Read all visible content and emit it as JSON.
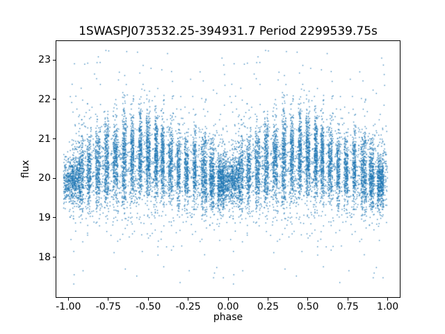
{
  "chart_data": {
    "type": "scatter",
    "title": "1SWASPJ073532.25-394931.7 Period 2299539.75s",
    "xlabel": "phase",
    "ylabel": "flux",
    "xlim": [
      -1.08,
      1.08
    ],
    "ylim": [
      16.97,
      23.5
    ],
    "x_ticks": {
      "values": [
        -1.0,
        -0.75,
        -0.5,
        -0.25,
        0.0,
        0.25,
        0.5,
        0.75,
        1.0
      ],
      "labels": [
        "-1.00",
        "-0.75",
        "-0.50",
        "-0.25",
        "0.00",
        "0.25",
        "0.50",
        "0.75",
        "1.00"
      ]
    },
    "y_ticks": {
      "values": [
        18,
        19,
        20,
        21,
        22,
        23
      ],
      "labels": [
        "18",
        "19",
        "20",
        "21",
        "22",
        "23"
      ]
    },
    "grid": false,
    "legend": null,
    "colors": {
      "marker": "#1f77b4",
      "spine": "#000000",
      "background": "#ffffff",
      "text": "#000000"
    },
    "marker": {
      "radius": 0.7,
      "alpha": 0.9
    },
    "description": "Phase-folded SuperWASP light curve; ~14000 tiny blue points. Flux mostly 19-21.5 centered near 20.1, dense vertical night-clusters, sparse outliers from 17.3 up to 23.2. Data in phase [0,1] duplicated at phase-1 so pattern repeats over [-1,0] and [0,1].",
    "point_generation": {
      "seed": 7,
      "phase_duplicate_offset": -1,
      "clusters": [
        {
          "phase": 0.02,
          "width": 0.1,
          "flux_mean": 19.95,
          "flux_sd": 0.28,
          "n": 550
        },
        {
          "phase": 0.08,
          "width": 0.03,
          "flux_mean": 20.1,
          "flux_sd": 0.45,
          "n": 250
        },
        {
          "phase": 0.13,
          "width": 0.025,
          "flux_mean": 20.2,
          "flux_sd": 0.5,
          "n": 220
        },
        {
          "phase": 0.185,
          "width": 0.03,
          "flux_mean": 20.3,
          "flux_sd": 0.5,
          "n": 260
        },
        {
          "phase": 0.24,
          "width": 0.025,
          "flux_mean": 20.4,
          "flux_sd": 0.55,
          "n": 280
        },
        {
          "phase": 0.295,
          "width": 0.03,
          "flux_mean": 20.45,
          "flux_sd": 0.55,
          "n": 300
        },
        {
          "phase": 0.35,
          "width": 0.025,
          "flux_mean": 20.5,
          "flux_sd": 0.6,
          "n": 300
        },
        {
          "phase": 0.4,
          "width": 0.02,
          "flux_mean": 20.6,
          "flux_sd": 0.55,
          "n": 280
        },
        {
          "phase": 0.45,
          "width": 0.02,
          "flux_mean": 20.65,
          "flux_sd": 0.55,
          "n": 300
        },
        {
          "phase": 0.5,
          "width": 0.025,
          "flux_mean": 20.6,
          "flux_sd": 0.6,
          "n": 330
        },
        {
          "phase": 0.55,
          "width": 0.02,
          "flux_mean": 20.65,
          "flux_sd": 0.55,
          "n": 300
        },
        {
          "phase": 0.59,
          "width": 0.02,
          "flux_mean": 20.55,
          "flux_sd": 0.55,
          "n": 280
        },
        {
          "phase": 0.64,
          "width": 0.025,
          "flux_mean": 20.35,
          "flux_sd": 0.5,
          "n": 260
        },
        {
          "phase": 0.69,
          "width": 0.02,
          "flux_mean": 20.25,
          "flux_sd": 0.45,
          "n": 220
        },
        {
          "phase": 0.74,
          "width": 0.025,
          "flux_mean": 20.2,
          "flux_sd": 0.45,
          "n": 240
        },
        {
          "phase": 0.79,
          "width": 0.02,
          "flux_mean": 20.3,
          "flux_sd": 0.45,
          "n": 220
        },
        {
          "phase": 0.85,
          "width": 0.035,
          "flux_mean": 20.2,
          "flux_sd": 0.5,
          "n": 320
        },
        {
          "phase": 0.9,
          "width": 0.03,
          "flux_mean": 20.05,
          "flux_sd": 0.45,
          "n": 300
        },
        {
          "phase": 0.955,
          "width": 0.04,
          "flux_mean": 19.9,
          "flux_sd": 0.35,
          "n": 420
        }
      ],
      "background": {
        "n": 1600,
        "flux_mean": 20.15,
        "flux_sd": 0.6
      },
      "outliers": {
        "n": 150,
        "flux_min": 17.25,
        "flux_max": 23.25
      }
    }
  }
}
